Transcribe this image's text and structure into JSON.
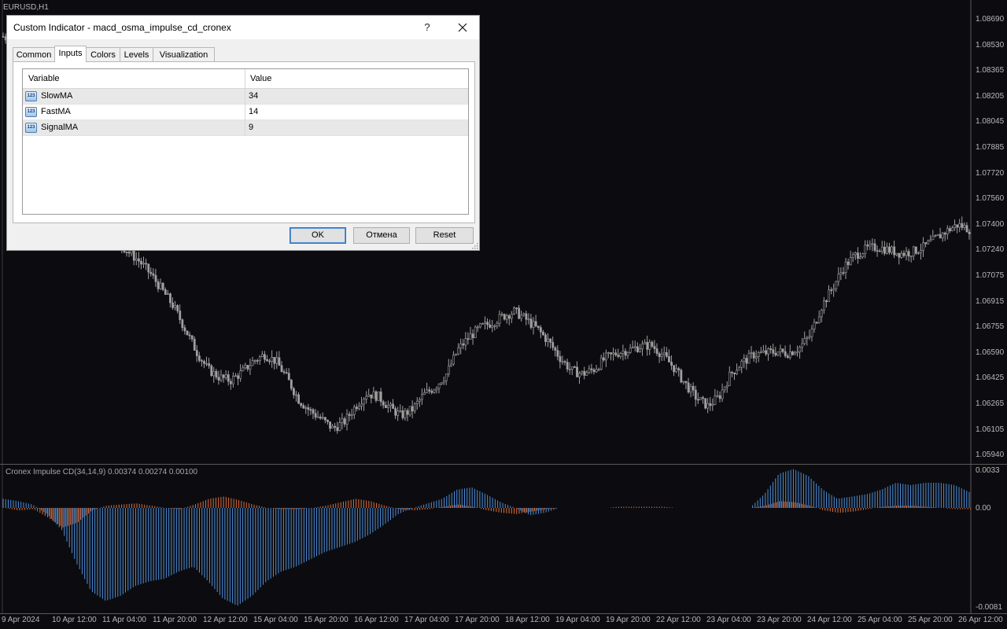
{
  "chart": {
    "symbol": "EURUSD,H1",
    "price_ticks": [
      "1.08690",
      "1.08530",
      "1.08365",
      "1.08205",
      "1.08045",
      "1.07885",
      "1.07720",
      "1.07560",
      "1.07400",
      "1.07240",
      "1.07075",
      "1.06915",
      "1.06755",
      "1.06590",
      "1.06425",
      "1.06265",
      "1.06105",
      "1.05940"
    ],
    "time_ticks": [
      "9 Apr 2024",
      "10 Apr 12:00",
      "11 Apr 04:00",
      "11 Apr 20:00",
      "12 Apr 12:00",
      "15 Apr 04:00",
      "15 Apr 20:00",
      "16 Apr 12:00",
      "17 Apr 04:00",
      "17 Apr 20:00",
      "18 Apr 12:00",
      "19 Apr 04:00",
      "19 Apr 20:00",
      "22 Apr 12:00",
      "23 Apr 04:00",
      "23 Apr 20:00",
      "24 Apr 12:00",
      "25 Apr 04:00",
      "25 Apr 20:00",
      "26 Apr 12:00"
    ],
    "colors": {
      "background": "#0c0c10",
      "candle": "#a0a0a0",
      "hist_blue": "#4f8fd8",
      "hist_orange": "#e0703a",
      "text": "#b8b8b8"
    }
  },
  "indicator": {
    "label": "Cronex Impulse CD(34,14,9) 0.00374 0.00274 0.00100",
    "scale_ticks": [
      "0.0033",
      "0.00",
      "-0.0081"
    ]
  },
  "chart_data": {
    "type": "line",
    "title": "",
    "x_range": [
      "9 Apr 2024",
      "26 Apr 12:00"
    ],
    "y_range": [
      1.0594,
      1.0869
    ],
    "close_series": [
      1.0858,
      1.0855,
      1.0848,
      1.0835,
      1.0818,
      1.08,
      1.0782,
      1.0766,
      1.0752,
      1.074,
      1.0731,
      1.0724,
      1.0718,
      1.071,
      1.07,
      1.069,
      1.0676,
      1.0662,
      1.0651,
      1.0646,
      1.0644,
      1.0649,
      1.0656,
      1.066,
      1.0656,
      1.0645,
      1.0632,
      1.0625,
      1.062,
      1.0614,
      1.0618,
      1.0628,
      1.0636,
      1.0634,
      1.0627,
      1.0622,
      1.0626,
      1.0635,
      1.064,
      1.0648,
      1.0663,
      1.0671,
      1.0677,
      1.068,
      1.0684,
      1.0687,
      1.0682,
      1.0676,
      1.0668,
      1.0658,
      1.065,
      1.0648,
      1.0651,
      1.0658,
      1.0661,
      1.0663,
      1.0665,
      1.0666,
      1.066,
      1.0652,
      1.0642,
      1.0633,
      1.0628,
      1.0634,
      1.0648,
      1.0655,
      1.066,
      1.0661,
      1.0662,
      1.0661,
      1.0664,
      1.0672,
      1.069,
      1.0702,
      1.0715,
      1.0722,
      1.0726,
      1.0727,
      1.0725,
      1.0723,
      1.0724,
      1.0727,
      1.0732,
      1.0737,
      1.0741,
      1.0738
    ],
    "histogram": {
      "blue": [
        0.0008,
        0.0006,
        0.0003,
        -0.0005,
        -0.0018,
        -0.0045,
        -0.0068,
        -0.0076,
        -0.0072,
        -0.0064,
        -0.006,
        -0.0058,
        -0.0052,
        -0.0048,
        -0.006,
        -0.0074,
        -0.008,
        -0.0072,
        -0.006,
        -0.0052,
        -0.0048,
        -0.0042,
        -0.0036,
        -0.0032,
        -0.0028,
        -0.0022,
        -0.0014,
        -0.0005,
        0.0,
        0.0004,
        0.0008,
        0.0016,
        0.0018,
        0.0012,
        0.0005,
        0.0,
        -0.0006,
        -0.0004,
        0.0,
        0.0,
        0.0,
        0.0,
        0.0,
        0.0,
        0.0,
        0.0,
        0.0,
        0.0,
        0.0,
        0.0,
        0.0,
        0.0,
        0.0012,
        0.003,
        0.0034,
        0.0028,
        0.0016,
        0.0008,
        0.001,
        0.0012,
        0.0016,
        0.0022,
        0.002,
        0.0022,
        0.0022,
        0.002,
        0.0014
      ],
      "orange": [
        0.0,
        -0.0002,
        -0.0001,
        -0.0008,
        -0.0016,
        -0.0012,
        -0.0002,
        0.0002,
        0.0003,
        0.0004,
        0.0002,
        0.0,
        -0.0001,
        0.0003,
        0.0008,
        0.001,
        0.0007,
        0.0003,
        0.0,
        -0.0001,
        -0.0001,
        0.0,
        0.0002,
        0.0005,
        0.0008,
        0.0006,
        0.0002,
        -0.0001,
        -0.0002,
        -0.0001,
        0.0001,
        0.0003,
        0.0001,
        -0.0002,
        -0.0004,
        -0.0005,
        -0.0003,
        -0.0001,
        0.0,
        0.0,
        0.0,
        0.0,
        0.0001,
        0.0001,
        0.0001,
        0.0001,
        0.0,
        0.0,
        0.0,
        0.0,
        0.0,
        0.0,
        0.0002,
        0.0006,
        0.0005,
        0.0002,
        -0.0002,
        -0.0004,
        -0.0003,
        -0.0001,
        0.0001,
        0.0002,
        0.0002,
        0.0001,
        0.0,
        -0.0001,
        -0.0001
      ]
    }
  },
  "dialog": {
    "title": "Custom Indicator - macd_osma_impulse_cd_cronex",
    "help_label": "?",
    "tabs": [
      {
        "label": "Common"
      },
      {
        "label": "Inputs"
      },
      {
        "label": "Colors"
      },
      {
        "label": "Levels"
      },
      {
        "label": "Visualization"
      }
    ],
    "active_tab": "Inputs",
    "grid": {
      "headers": {
        "variable": "Variable",
        "value": "Value"
      },
      "rows": [
        {
          "icon_text": "123",
          "name": "SlowMA",
          "value": "34"
        },
        {
          "icon_text": "123",
          "name": "FastMA",
          "value": "14"
        },
        {
          "icon_text": "123",
          "name": "SignalMA",
          "value": "9"
        }
      ]
    },
    "buttons": {
      "ok": "OK",
      "cancel": "Отмена",
      "reset": "Reset"
    }
  }
}
